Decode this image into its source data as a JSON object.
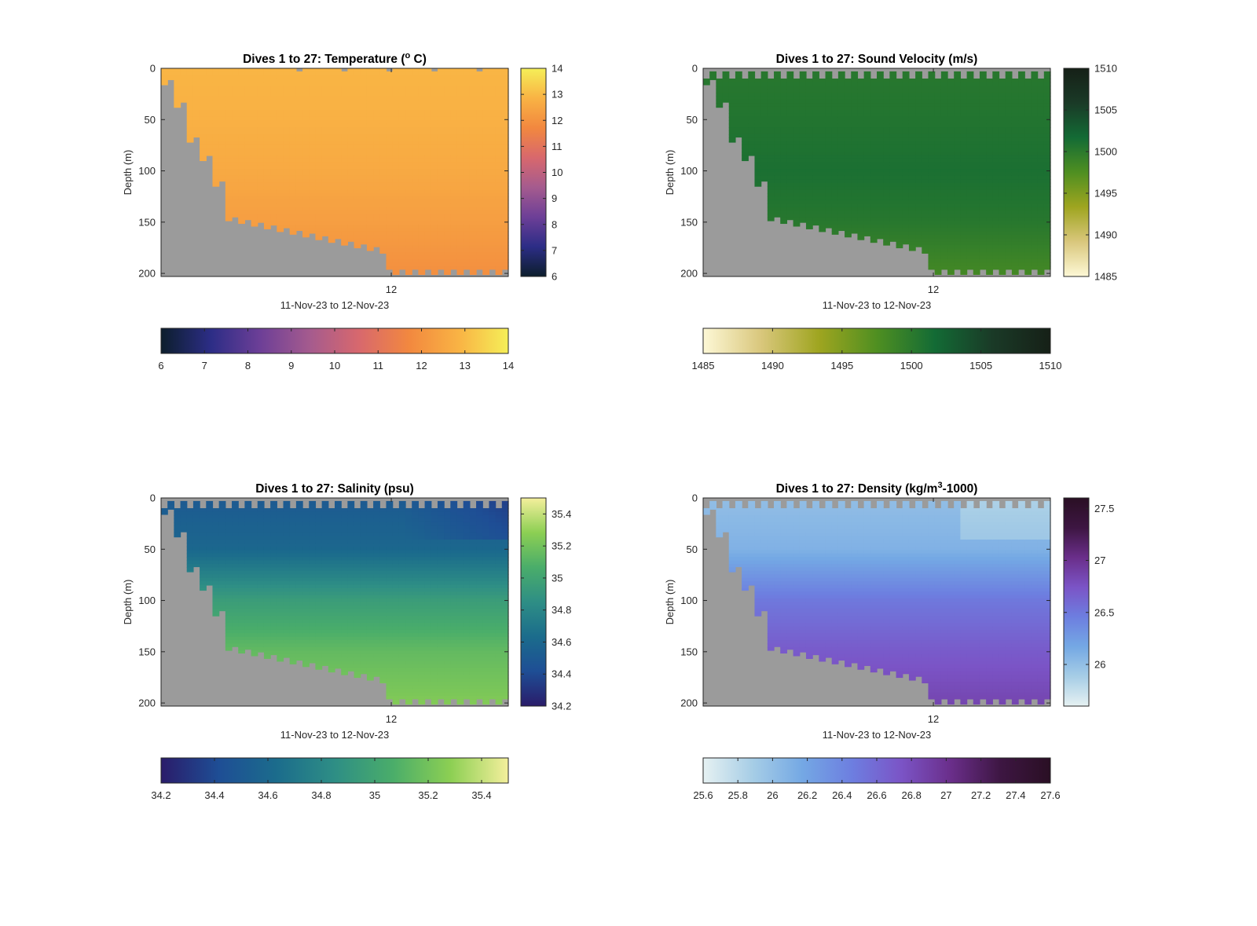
{
  "colors": {
    "mask": "#9b9b9b",
    "axis": "#262626",
    "background": "#ffffff"
  },
  "chart_data": [
    {
      "type": "heatmap",
      "variable": "temperature",
      "title": "Dives 1 to 27: Temperature (o C)",
      "title_parts": [
        "Dives 1 to 27: Temperature (",
        "o",
        " C)"
      ],
      "xlabel": "11-Nov-23 to 12-Nov-23",
      "ylabel": "Depth (m)",
      "x_tick_labels": [
        "12"
      ],
      "y_ticks": [
        0,
        50,
        100,
        150,
        200
      ],
      "ylim": [
        0,
        203
      ],
      "dives": 27,
      "colorbar": {
        "min": 6,
        "max": 14,
        "ticks": [
          6,
          7,
          8,
          9,
          10,
          11,
          12,
          13,
          14
        ],
        "colors": [
          "#0c1e2c",
          "#2c2d86",
          "#6d3f97",
          "#a55b8e",
          "#d8686d",
          "#f2883f",
          "#f9b344",
          "#f5ef58"
        ]
      },
      "profile": {
        "surface_to_bottom": [
          {
            "depth": 0,
            "value": 12.9
          },
          {
            "depth": 50,
            "value": 12.8
          },
          {
            "depth": 100,
            "value": 12.6
          },
          {
            "depth": 150,
            "value": 12.3
          },
          {
            "depth": 200,
            "value": 11.9
          }
        ]
      },
      "surface_gap_m": 0
    },
    {
      "type": "heatmap",
      "variable": "sound_velocity",
      "title": "Dives 1 to 27: Sound Velocity (m/s)",
      "title_parts": [
        "Dives 1 to 27: Sound Velocity (m/s)"
      ],
      "xlabel": "11-Nov-23 to 12-Nov-23",
      "ylabel": "Depth (m)",
      "x_tick_labels": [
        "12"
      ],
      "y_ticks": [
        0,
        50,
        100,
        150,
        200
      ],
      "ylim": [
        0,
        203
      ],
      "dives": 27,
      "colorbar": {
        "min": 1485,
        "max": 1510,
        "ticks": [
          1485,
          1490,
          1495,
          1500,
          1505,
          1510
        ],
        "colors": [
          "#fdf8d6",
          "#d9c77c",
          "#9fa520",
          "#4f8f21",
          "#136b35",
          "#1a3a27",
          "#162017"
        ]
      },
      "profile": {
        "surface_to_bottom": [
          {
            "depth": 0,
            "value": 1500.2
          },
          {
            "depth": 50,
            "value": 1500.6
          },
          {
            "depth": 100,
            "value": 1501.1
          },
          {
            "depth": 150,
            "value": 1500.3
          },
          {
            "depth": 200,
            "value": 1498.8
          }
        ]
      },
      "surface_gap_m": 10
    },
    {
      "type": "heatmap",
      "variable": "salinity",
      "title": "Dives 1 to 27: Salinity (psu)",
      "title_parts": [
        "Dives 1 to 27: Salinity (psu)"
      ],
      "xlabel": "11-Nov-23 to 12-Nov-23",
      "ylabel": "Depth (m)",
      "x_tick_labels": [
        "12"
      ],
      "y_ticks": [
        0,
        50,
        100,
        150,
        200
      ],
      "ylim": [
        0,
        203
      ],
      "dives": 27,
      "colorbar": {
        "min": 34.2,
        "max": 35.5,
        "ticks": [
          34.2,
          34.4,
          34.6,
          34.8,
          35,
          35.2,
          35.4
        ],
        "colors": [
          "#2a1c6a",
          "#1e4e95",
          "#1b6c8c",
          "#2e8e85",
          "#4aad6a",
          "#8ccf53",
          "#f4ef9c"
        ]
      },
      "profile": {
        "surface_to_bottom": [
          {
            "depth": 0,
            "value": 34.5
          },
          {
            "depth": 50,
            "value": 34.6
          },
          {
            "depth": 100,
            "value": 34.95
          },
          {
            "depth": 150,
            "value": 35.15
          },
          {
            "depth": 200,
            "value": 35.25
          }
        ]
      },
      "surface_gap_m": 10
    },
    {
      "type": "heatmap",
      "variable": "density",
      "title": "Dives 1 to 27: Density (kg/m3-1000)",
      "title_parts": [
        "Dives 1 to 27: Density (kg/m",
        "3",
        "-1000)"
      ],
      "xlabel": "11-Nov-23 to 12-Nov-23",
      "ylabel": "Depth (m)",
      "x_tick_labels": [
        "12"
      ],
      "y_ticks": [
        0,
        50,
        100,
        150,
        200
      ],
      "ylim": [
        0,
        203
      ],
      "dives": 27,
      "colorbar": {
        "min": 25.6,
        "max": 27.6,
        "ticks": [
          25.6,
          25.8,
          26,
          26.2,
          26.4,
          26.6,
          26.8,
          27,
          27.2,
          27.4,
          27.6
        ],
        "right_ticks": [
          26,
          26.5,
          27,
          27.5
        ],
        "colors": [
          "#e6f1f2",
          "#a6cde6",
          "#74a8e4",
          "#6d7ee0",
          "#7b54c6",
          "#6a2e8a",
          "#3d1642",
          "#2a0f24"
        ]
      },
      "profile": {
        "surface_to_bottom": [
          {
            "depth": 0,
            "value": 26.0
          },
          {
            "depth": 50,
            "value": 26.1
          },
          {
            "depth": 100,
            "value": 26.5
          },
          {
            "depth": 150,
            "value": 26.7
          },
          {
            "depth": 200,
            "value": 26.85
          }
        ]
      },
      "surface_gap_m": 10
    }
  ]
}
